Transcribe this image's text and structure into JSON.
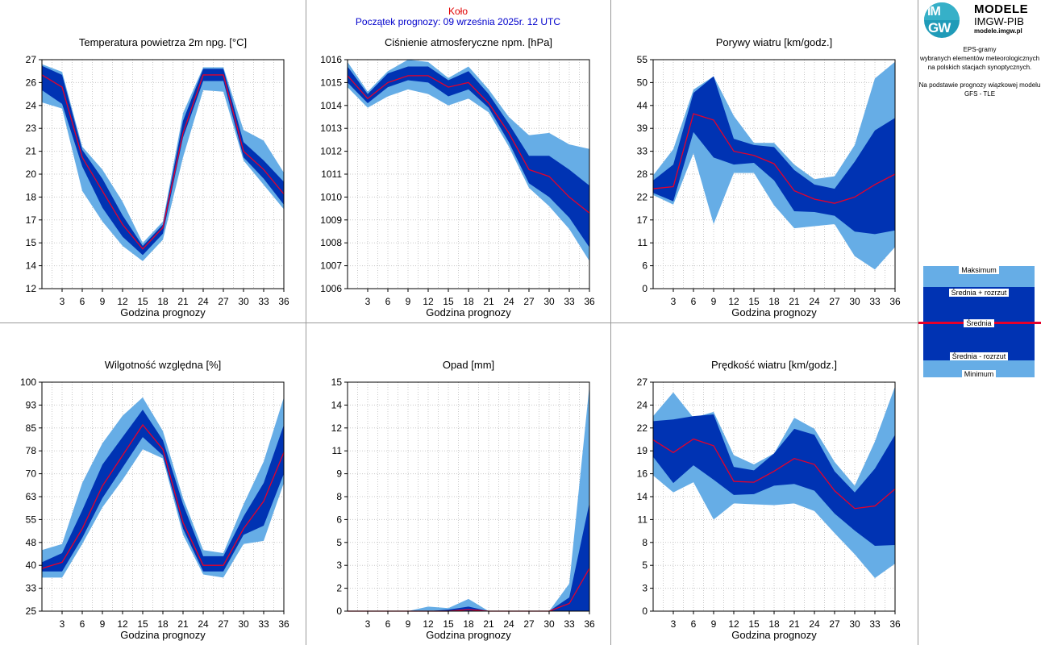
{
  "header": {
    "station": "Koło",
    "forecast_start": "Początek prognozy: 09 września 2025r. 12 UTC"
  },
  "logo": {
    "circle_top": "IM",
    "circle_bottom": "GW",
    "name": "MODELE",
    "subname": "IMGW-PIB",
    "url": "modele.imgw.pl"
  },
  "side_note": {
    "line1": "EPS-gramy",
    "line2": "wybranych elementów meteorologicznych",
    "line3": "na polskich stacjach  synoptycznych.",
    "line4": "Na podstawie prognozy wiązkowej modelu",
    "line5": "GFS - TLE"
  },
  "legend": {
    "max": "Maksimum",
    "plus": "Średnia + rozrzut",
    "mean": "Średnia",
    "minus": "Średnia - rozrzut",
    "min": "Minimum"
  },
  "colors": {
    "outer_band": "#66ade6",
    "inner_band": "#0033b3",
    "mean_line": "#e6002a",
    "station_text": "#e00000",
    "start_text": "#0000cc"
  },
  "chart_data": [
    {
      "id": "temp",
      "type": "area",
      "title": "Temperatura powietrza 2m npg. [°C]",
      "xlabel": "Godzina prognozy",
      "x": [
        0,
        3,
        6,
        9,
        12,
        15,
        18,
        21,
        24,
        27,
        30,
        33,
        36
      ],
      "xticks": [
        "3",
        "6",
        "9",
        "12",
        "15",
        "18",
        "21",
        "24",
        "27",
        "30",
        "33",
        "36"
      ],
      "ylim": [
        12,
        27
      ],
      "yticks": [
        "12",
        "14",
        "15",
        "17",
        "18",
        "20",
        "21",
        "23",
        "24",
        "26",
        "27"
      ],
      "min": [
        24.2,
        23.8,
        18.4,
        16.4,
        14.8,
        13.8,
        15.2,
        20.6,
        25.0,
        24.9,
        20.4,
        18.8,
        17.2
      ],
      "minus": [
        25.0,
        24.1,
        20.0,
        17.3,
        15.4,
        14.2,
        15.6,
        21.9,
        25.6,
        25.6,
        20.6,
        19.2,
        17.5
      ],
      "mean": [
        26.0,
        25.2,
        20.6,
        18.4,
        16.2,
        14.6,
        16.0,
        22.2,
        26.0,
        26.0,
        21.0,
        19.8,
        18.2
      ],
      "plus": [
        26.6,
        26.0,
        21.1,
        19.2,
        16.8,
        14.8,
        16.2,
        23.0,
        26.4,
        26.4,
        21.6,
        20.4,
        19.0
      ],
      "max": [
        26.7,
        26.2,
        21.3,
        19.8,
        17.7,
        15.0,
        16.4,
        23.5,
        26.5,
        26.5,
        22.4,
        21.7,
        19.6
      ]
    },
    {
      "id": "pressure",
      "type": "area",
      "title": "Ciśnienie atmosferyczne npm. [hPa]",
      "xlabel": "Godzina prognozy",
      "x": [
        0,
        3,
        6,
        9,
        12,
        15,
        18,
        21,
        24,
        27,
        30,
        33,
        36
      ],
      "xticks": [
        "3",
        "6",
        "9",
        "12",
        "15",
        "18",
        "21",
        "24",
        "27",
        "30",
        "33",
        "36"
      ],
      "ylim": [
        1006,
        1016
      ],
      "yticks": [
        "1006",
        "1007",
        "1008",
        "1009",
        "1010",
        "1011",
        "1012",
        "1013",
        "1014",
        "1015",
        "1016"
      ],
      "min": [
        1014.8,
        1013.9,
        1014.4,
        1014.7,
        1014.5,
        1014.0,
        1014.3,
        1013.7,
        1012.2,
        1010.4,
        1009.6,
        1008.6,
        1007.2
      ],
      "minus": [
        1015.0,
        1014.1,
        1014.8,
        1015.1,
        1015.0,
        1014.4,
        1014.7,
        1013.9,
        1012.4,
        1010.6,
        1010.0,
        1009.1,
        1007.8
      ],
      "mean": [
        1015.3,
        1014.3,
        1015.0,
        1015.3,
        1015.3,
        1014.8,
        1015.0,
        1014.1,
        1012.8,
        1011.2,
        1010.9,
        1010.0,
        1009.3
      ],
      "plus": [
        1015.7,
        1014.5,
        1015.4,
        1015.7,
        1015.7,
        1015.1,
        1015.5,
        1014.5,
        1013.2,
        1011.8,
        1011.8,
        1011.2,
        1010.5
      ],
      "max": [
        1015.9,
        1014.6,
        1015.5,
        1016.0,
        1015.9,
        1015.2,
        1015.7,
        1014.7,
        1013.5,
        1012.7,
        1012.8,
        1012.3,
        1012.1
      ]
    },
    {
      "id": "gusts",
      "type": "area",
      "title": "Porywy wiatru [km/godz.]",
      "xlabel": "Godzina prognozy",
      "x": [
        0,
        3,
        6,
        9,
        12,
        15,
        18,
        21,
        24,
        27,
        30,
        33,
        36
      ],
      "xticks": [
        "3",
        "6",
        "9",
        "12",
        "15",
        "18",
        "21",
        "24",
        "27",
        "30",
        "33",
        "36"
      ],
      "ylim": [
        0,
        55
      ],
      "yticks": [
        "0",
        "6",
        "11",
        "17",
        "22",
        "28",
        "33",
        "39",
        "44",
        "50",
        "55"
      ],
      "min": [
        22.5,
        20.2,
        32.5,
        15.5,
        27.8,
        27.8,
        20.0,
        14.5,
        15.0,
        15.5,
        7.8,
        4.6,
        10.0
      ],
      "minus": [
        23.0,
        21.0,
        37.6,
        31.5,
        29.8,
        30.2,
        26.0,
        18.6,
        18.4,
        17.5,
        13.7,
        13.1,
        14.0
      ],
      "mean": [
        24.0,
        24.5,
        42.0,
        40.5,
        33.0,
        32.0,
        30.0,
        23.5,
        21.5,
        20.5,
        22.0,
        25.0,
        27.5
      ],
      "plus": [
        26.0,
        29.8,
        47.0,
        51.0,
        36.0,
        34.5,
        34.0,
        28.5,
        25.0,
        24.0,
        30.5,
        38.0,
        41.0
      ],
      "max": [
        27.2,
        33.5,
        47.8,
        51.0,
        41.5,
        35.0,
        35.0,
        29.8,
        26.3,
        27.0,
        34.5,
        50.5,
        54.5
      ]
    },
    {
      "id": "humidity",
      "type": "area",
      "title": "Wilgotność względna [%]",
      "xlabel": "Godzina prognozy",
      "x": [
        0,
        3,
        6,
        9,
        12,
        15,
        18,
        21,
        24,
        27,
        30,
        33,
        36
      ],
      "xticks": [
        "3",
        "6",
        "9",
        "12",
        "15",
        "18",
        "21",
        "24",
        "27",
        "30",
        "33",
        "36"
      ],
      "ylim": [
        25,
        100
      ],
      "yticks": [
        "25",
        "33",
        "40",
        "48",
        "55",
        "63",
        "70",
        "78",
        "85",
        "93",
        "100"
      ],
      "min": [
        36,
        36,
        47,
        59,
        68,
        78,
        75,
        50,
        37,
        36,
        47,
        48,
        67
      ],
      "minus": [
        38,
        38,
        49,
        62,
        72,
        82,
        76,
        52,
        38,
        38,
        50,
        53,
        70
      ],
      "mean": [
        39,
        41,
        52,
        66,
        76,
        86,
        78,
        54,
        40,
        40,
        52,
        61,
        77
      ],
      "plus": [
        41,
        44,
        58,
        73,
        82,
        91,
        81,
        60,
        43,
        43,
        56,
        67,
        86
      ],
      "max": [
        45,
        47,
        67,
        80,
        89,
        95,
        84,
        62,
        45,
        44,
        60,
        74,
        95
      ]
    },
    {
      "id": "precip",
      "type": "area",
      "title": "Opad [mm]",
      "xlabel": "Godzina prognozy",
      "x": [
        0,
        3,
        6,
        9,
        12,
        15,
        18,
        21,
        24,
        27,
        30,
        33,
        36
      ],
      "xticks": [
        "3",
        "6",
        "9",
        "12",
        "15",
        "18",
        "21",
        "24",
        "27",
        "30",
        "33",
        "36"
      ],
      "ylim": [
        0,
        15
      ],
      "yticks": [
        "0",
        "2",
        "3",
        "5",
        "6",
        "8",
        "9",
        "11",
        "12",
        "14",
        "15"
      ],
      "min": [
        0,
        0,
        0,
        0,
        0,
        0,
        0,
        0,
        0,
        0,
        0,
        0,
        0
      ],
      "minus": [
        0,
        0,
        0,
        0,
        0,
        0,
        0,
        0,
        0,
        0,
        0,
        0,
        0
      ],
      "mean": [
        0,
        0,
        0,
        0,
        0,
        0,
        0.1,
        0,
        0,
        0,
        0,
        0.5,
        2.8
      ],
      "plus": [
        0,
        0,
        0,
        0,
        0,
        0.1,
        0.3,
        0,
        0,
        0,
        0,
        0.9,
        7.1
      ],
      "max": [
        0,
        0,
        0,
        0,
        0.3,
        0.2,
        0.8,
        0,
        0,
        0,
        0,
        1.8,
        14.8
      ]
    },
    {
      "id": "windspeed",
      "type": "area",
      "title": "Prędkość wiatru [km/godz.]",
      "xlabel": "Godzina prognozy",
      "x": [
        0,
        3,
        6,
        9,
        12,
        15,
        18,
        21,
        24,
        27,
        30,
        33,
        36
      ],
      "xticks": [
        "3",
        "6",
        "9",
        "12",
        "15",
        "18",
        "21",
        "24",
        "27",
        "30",
        "33",
        "36"
      ],
      "ylim": [
        0,
        27
      ],
      "yticks": [
        "0",
        "3",
        "5",
        "8",
        "11",
        "14",
        "16",
        "19",
        "22",
        "24",
        "27"
      ],
      "min": [
        16.0,
        14.0,
        15.2,
        10.8,
        12.7,
        12.6,
        12.5,
        12.7,
        11.8,
        9.2,
        6.7,
        3.9,
        5.6
      ],
      "minus": [
        18.2,
        15.1,
        17.2,
        15.5,
        13.7,
        13.8,
        14.8,
        15.0,
        14.2,
        11.5,
        9.5,
        7.7,
        7.8
      ],
      "mean": [
        20.2,
        18.7,
        20.3,
        19.5,
        15.3,
        15.2,
        16.5,
        18.0,
        17.3,
        14.2,
        12.1,
        12.4,
        14.4
      ],
      "plus": [
        22.4,
        22.6,
        23.0,
        23.2,
        17.0,
        16.6,
        18.6,
        21.5,
        20.8,
        16.5,
        14.0,
        16.8,
        20.8
      ],
      "max": [
        23.0,
        25.8,
        22.8,
        23.5,
        18.4,
        17.3,
        18.6,
        22.8,
        21.5,
        17.6,
        14.8,
        20.0,
        26.5
      ]
    }
  ]
}
